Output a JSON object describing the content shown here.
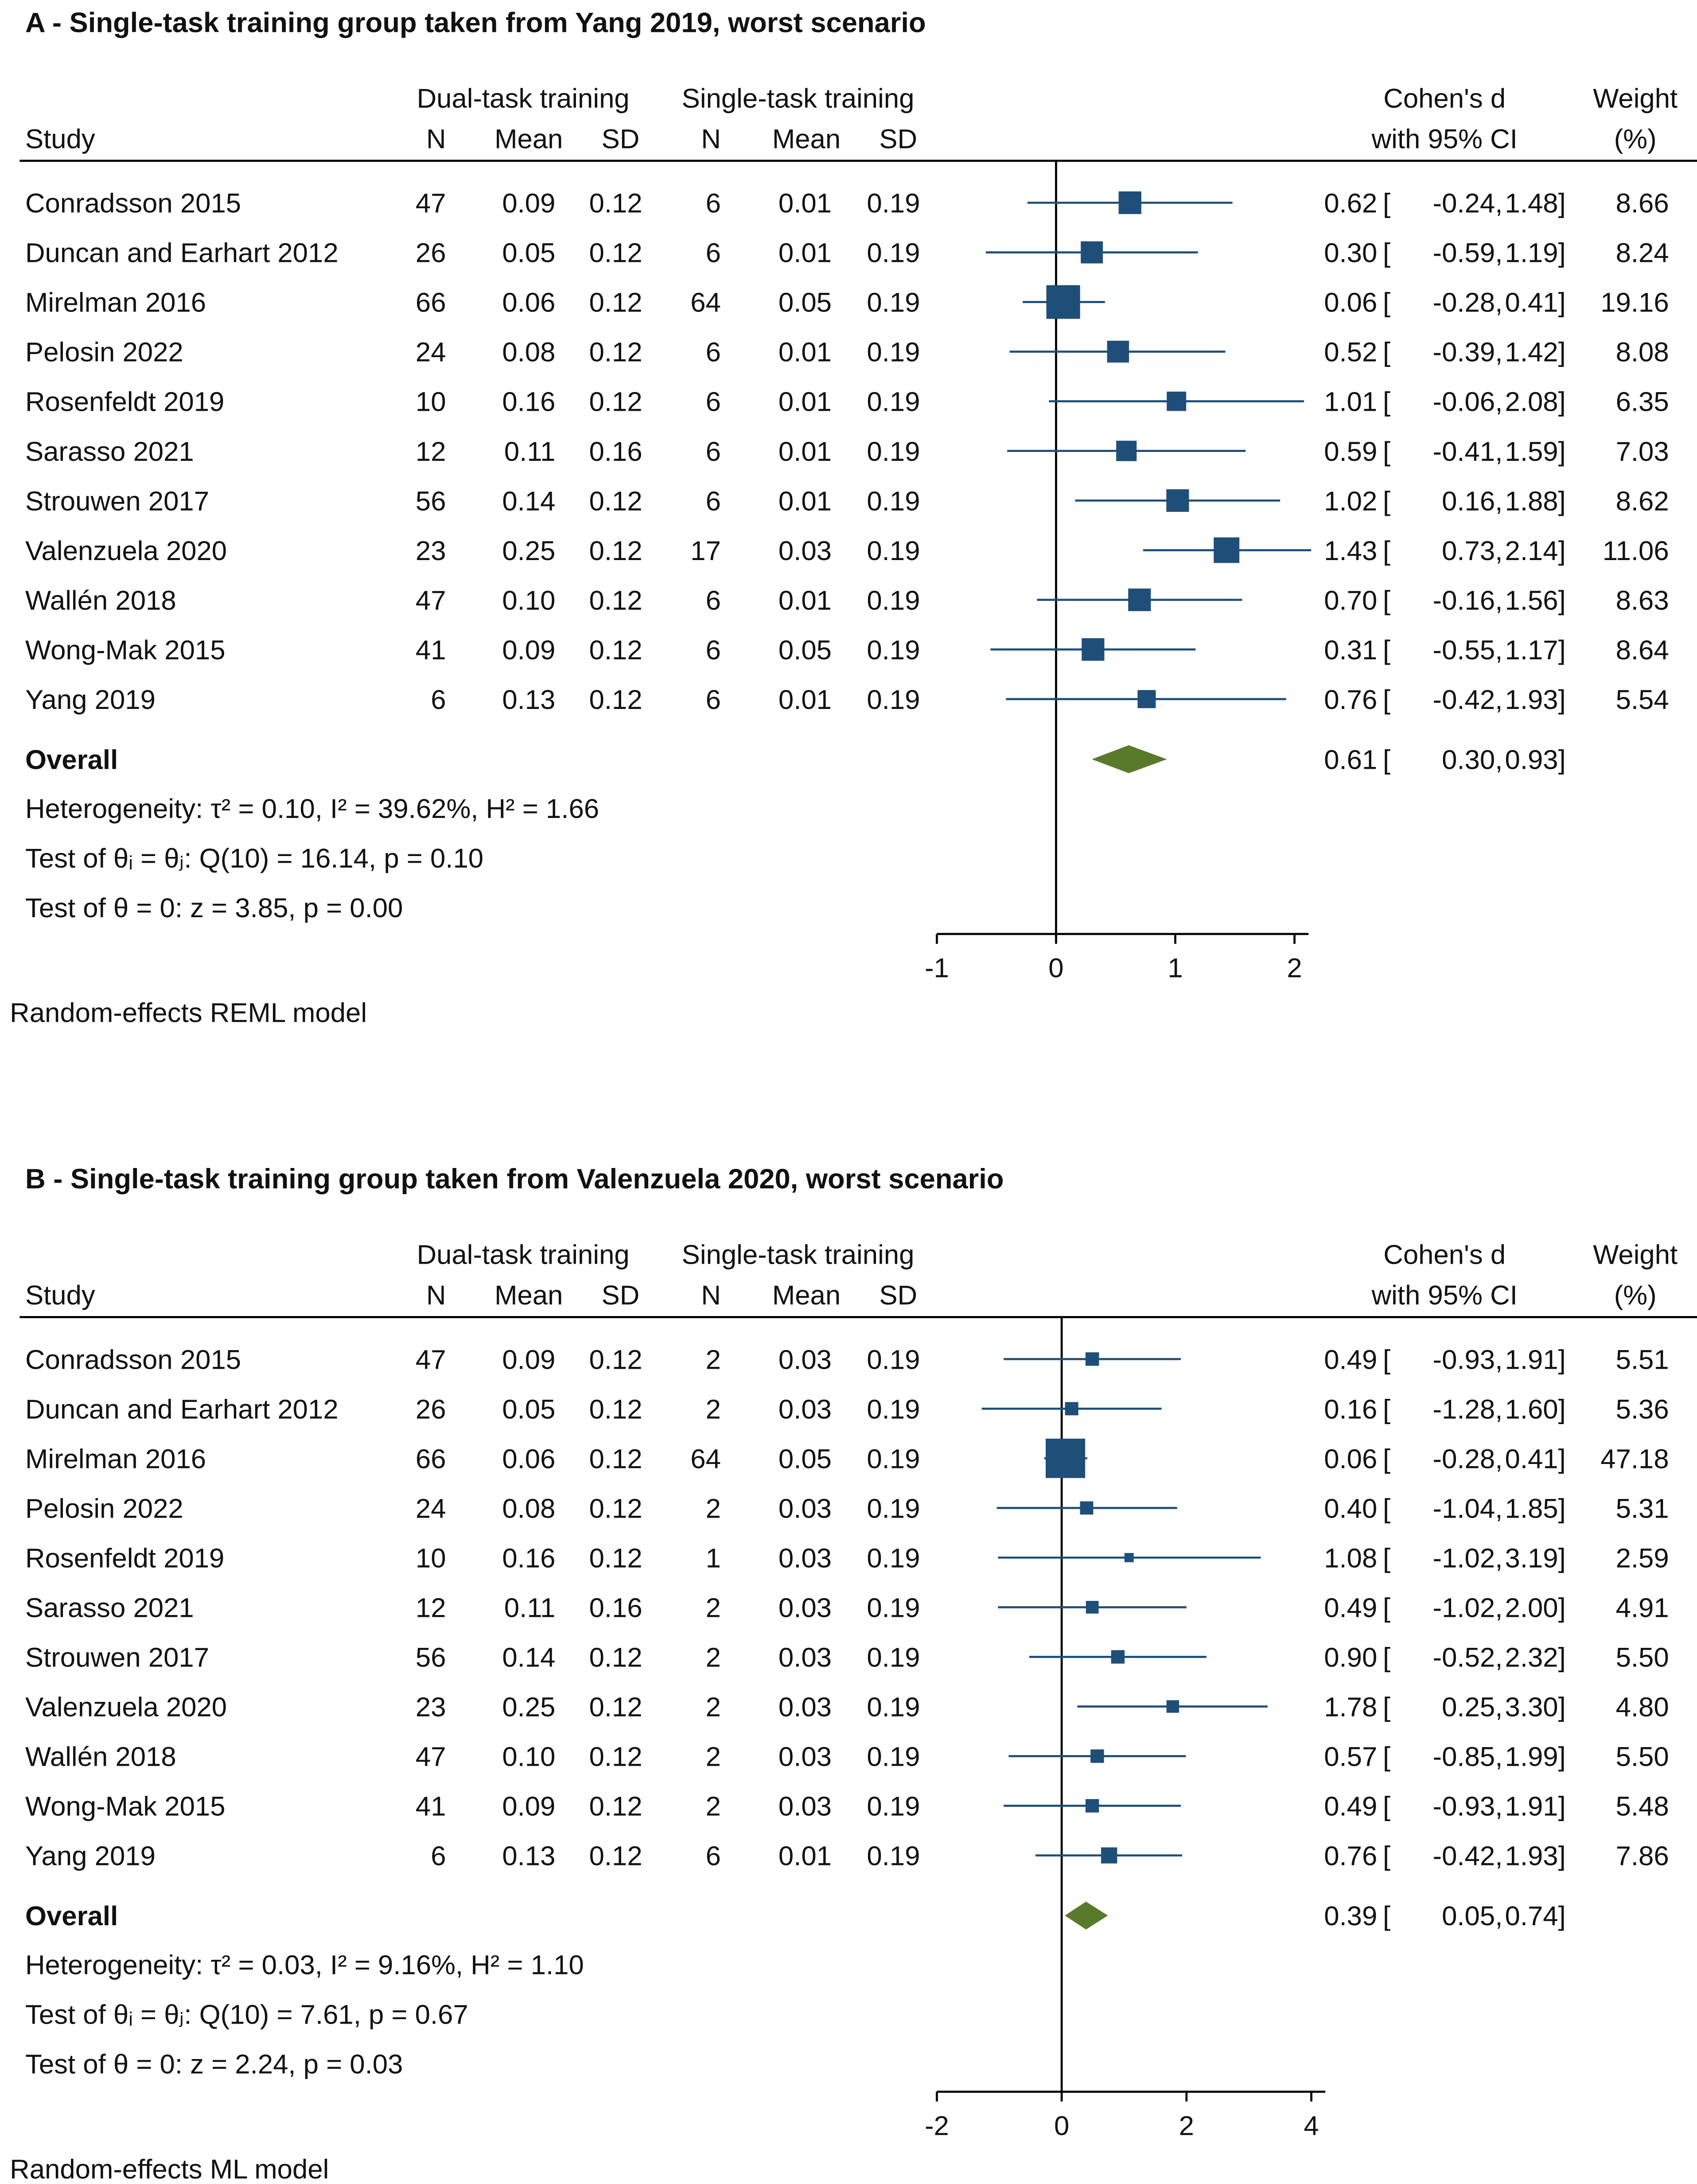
{
  "colors": {
    "marker": "#1f4e79",
    "ci_line": "#1f4e79",
    "diamond": "#5a7a2b",
    "axis": "#000000"
  },
  "headers": {
    "dual": "Dual-task training",
    "single": "Single-task training",
    "study": "Study",
    "n": "N",
    "mean": "Mean",
    "sd": "SD",
    "effect1": "Cohen's d",
    "effect2": "with 95% CI",
    "weight1": "Weight",
    "weight2": "(%)"
  },
  "chart_data": [
    {
      "type": "forest",
      "title": "A -  Single-task training group taken from Yang 2019, worst scenario",
      "xlim": [
        -1,
        2
      ],
      "xticks": [
        "-1",
        "0",
        "1",
        "2"
      ],
      "rows": [
        {
          "study": "Conradsson 2015",
          "n1": "47",
          "mean1": "0.09",
          "sd1": "0.12",
          "n2": "6",
          "mean2": "0.01",
          "sd2": "0.19",
          "d": "0.62",
          "lo": "-0.24",
          "hi": "1.48",
          "weight": "8.66"
        },
        {
          "study": "Duncan and Earhart 2012",
          "n1": "26",
          "mean1": "0.05",
          "sd1": "0.12",
          "n2": "6",
          "mean2": "0.01",
          "sd2": "0.19",
          "d": "0.30",
          "lo": "-0.59",
          "hi": "1.19",
          "weight": "8.24"
        },
        {
          "study": "Mirelman 2016",
          "n1": "66",
          "mean1": "0.06",
          "sd1": "0.12",
          "n2": "64",
          "mean2": "0.05",
          "sd2": "0.19",
          "d": "0.06",
          "lo": "-0.28",
          "hi": "0.41",
          "weight": "19.16"
        },
        {
          "study": "Pelosin 2022",
          "n1": "24",
          "mean1": "0.08",
          "sd1": "0.12",
          "n2": "6",
          "mean2": "0.01",
          "sd2": "0.19",
          "d": "0.52",
          "lo": "-0.39",
          "hi": "1.42",
          "weight": "8.08"
        },
        {
          "study": "Rosenfeldt 2019",
          "n1": "10",
          "mean1": "0.16",
          "sd1": "0.12",
          "n2": "6",
          "mean2": "0.01",
          "sd2": "0.19",
          "d": "1.01",
          "lo": "-0.06",
          "hi": "2.08",
          "weight": "6.35"
        },
        {
          "study": "Sarasso 2021",
          "n1": "12",
          "mean1": "0.11",
          "sd1": "0.16",
          "n2": "6",
          "mean2": "0.01",
          "sd2": "0.19",
          "d": "0.59",
          "lo": "-0.41",
          "hi": "1.59",
          "weight": "7.03"
        },
        {
          "study": "Strouwen 2017",
          "n1": "56",
          "mean1": "0.14",
          "sd1": "0.12",
          "n2": "6",
          "mean2": "0.01",
          "sd2": "0.19",
          "d": "1.02",
          "lo": "0.16",
          "hi": "1.88",
          "weight": "8.62"
        },
        {
          "study": "Valenzuela 2020",
          "n1": "23",
          "mean1": "0.25",
          "sd1": "0.12",
          "n2": "17",
          "mean2": "0.03",
          "sd2": "0.19",
          "d": "1.43",
          "lo": "0.73",
          "hi": "2.14",
          "weight": "11.06"
        },
        {
          "study": "Wallén 2018",
          "n1": "47",
          "mean1": "0.10",
          "sd1": "0.12",
          "n2": "6",
          "mean2": "0.01",
          "sd2": "0.19",
          "d": "0.70",
          "lo": "-0.16",
          "hi": "1.56",
          "weight": "8.63"
        },
        {
          "study": "Wong-Mak 2015",
          "n1": "41",
          "mean1": "0.09",
          "sd1": "0.12",
          "n2": "6",
          "mean2": "0.05",
          "sd2": "0.19",
          "d": "0.31",
          "lo": "-0.55",
          "hi": "1.17",
          "weight": "8.64"
        },
        {
          "study": "Yang 2019",
          "n1": "6",
          "mean1": "0.13",
          "sd1": "0.12",
          "n2": "6",
          "mean2": "0.01",
          "sd2": "0.19",
          "d": "0.76",
          "lo": "-0.42",
          "hi": "1.93",
          "weight": "5.54"
        }
      ],
      "overall": {
        "label": "Overall",
        "d": "0.61",
        "lo": "0.30",
        "hi": "0.93"
      },
      "stats": [
        "Heterogeneity: τ² = 0.10, I² = 39.62%, H² = 1.66",
        "Test of θᵢ = θⱼ: Q(10) = 16.14, p = 0.10",
        "Test of θ = 0: z = 3.85, p = 0.00"
      ],
      "model": "Random-effects REML model"
    },
    {
      "type": "forest",
      "title": "B -  Single-task training group taken from Valenzuela 2020, worst scenario",
      "xlim": [
        -2,
        4
      ],
      "xticks": [
        "-2",
        "0",
        "2",
        "4"
      ],
      "rows": [
        {
          "study": "Conradsson 2015",
          "n1": "47",
          "mean1": "0.09",
          "sd1": "0.12",
          "n2": "2",
          "mean2": "0.03",
          "sd2": "0.19",
          "d": "0.49",
          "lo": "-0.93",
          "hi": "1.91",
          "weight": "5.51"
        },
        {
          "study": "Duncan and Earhart 2012",
          "n1": "26",
          "mean1": "0.05",
          "sd1": "0.12",
          "n2": "2",
          "mean2": "0.03",
          "sd2": "0.19",
          "d": "0.16",
          "lo": "-1.28",
          "hi": "1.60",
          "weight": "5.36"
        },
        {
          "study": "Mirelman 2016",
          "n1": "66",
          "mean1": "0.06",
          "sd1": "0.12",
          "n2": "64",
          "mean2": "0.05",
          "sd2": "0.19",
          "d": "0.06",
          "lo": "-0.28",
          "hi": "0.41",
          "weight": "47.18"
        },
        {
          "study": "Pelosin 2022",
          "n1": "24",
          "mean1": "0.08",
          "sd1": "0.12",
          "n2": "2",
          "mean2": "0.03",
          "sd2": "0.19",
          "d": "0.40",
          "lo": "-1.04",
          "hi": "1.85",
          "weight": "5.31"
        },
        {
          "study": "Rosenfeldt 2019",
          "n1": "10",
          "mean1": "0.16",
          "sd1": "0.12",
          "n2": "1",
          "mean2": "0.03",
          "sd2": "0.19",
          "d": "1.08",
          "lo": "-1.02",
          "hi": "3.19",
          "weight": "2.59"
        },
        {
          "study": "Sarasso 2021",
          "n1": "12",
          "mean1": "0.11",
          "sd1": "0.16",
          "n2": "2",
          "mean2": "0.03",
          "sd2": "0.19",
          "d": "0.49",
          "lo": "-1.02",
          "hi": "2.00",
          "weight": "4.91"
        },
        {
          "study": "Strouwen 2017",
          "n1": "56",
          "mean1": "0.14",
          "sd1": "0.12",
          "n2": "2",
          "mean2": "0.03",
          "sd2": "0.19",
          "d": "0.90",
          "lo": "-0.52",
          "hi": "2.32",
          "weight": "5.50"
        },
        {
          "study": "Valenzuela 2020",
          "n1": "23",
          "mean1": "0.25",
          "sd1": "0.12",
          "n2": "2",
          "mean2": "0.03",
          "sd2": "0.19",
          "d": "1.78",
          "lo": "0.25",
          "hi": "3.30",
          "weight": "4.80"
        },
        {
          "study": "Wallén 2018",
          "n1": "47",
          "mean1": "0.10",
          "sd1": "0.12",
          "n2": "2",
          "mean2": "0.03",
          "sd2": "0.19",
          "d": "0.57",
          "lo": "-0.85",
          "hi": "1.99",
          "weight": "5.50"
        },
        {
          "study": "Wong-Mak 2015",
          "n1": "41",
          "mean1": "0.09",
          "sd1": "0.12",
          "n2": "2",
          "mean2": "0.03",
          "sd2": "0.19",
          "d": "0.49",
          "lo": "-0.93",
          "hi": "1.91",
          "weight": "5.48"
        },
        {
          "study": "Yang 2019",
          "n1": "6",
          "mean1": "0.13",
          "sd1": "0.12",
          "n2": "6",
          "mean2": "0.01",
          "sd2": "0.19",
          "d": "0.76",
          "lo": "-0.42",
          "hi": "1.93",
          "weight": "7.86"
        }
      ],
      "overall": {
        "label": "Overall",
        "d": "0.39",
        "lo": "0.05",
        "hi": "0.74"
      },
      "stats": [
        "Heterogeneity: τ² = 0.03, I² = 9.16%, H² = 1.10",
        "Test of θᵢ = θⱼ: Q(10) = 7.61, p = 0.67",
        "Test of θ = 0: z = 2.24, p = 0.03"
      ],
      "model": "Random-effects ML model"
    }
  ]
}
